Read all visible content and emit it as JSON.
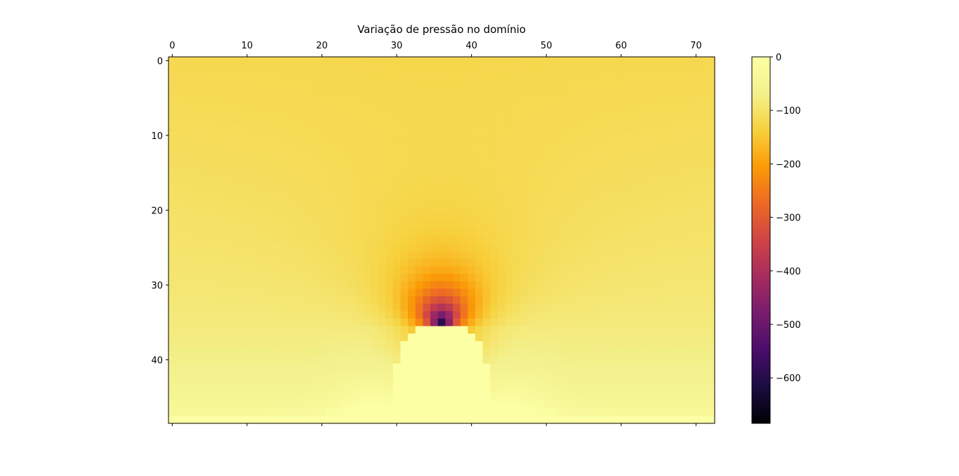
{
  "chart_data": {
    "type": "heatmap",
    "title": "Variação de pressão no domínio",
    "colormap": "inferno",
    "grid": false,
    "x_ticks": [
      0,
      10,
      20,
      30,
      40,
      50,
      60,
      70
    ],
    "y_ticks": [
      0,
      10,
      20,
      30,
      40
    ],
    "x_range": [
      -0.5,
      72.5
    ],
    "y_range": [
      -0.5,
      48.5
    ],
    "n_cols": 73,
    "n_rows": 49,
    "colorbar": {
      "ticks": [
        0,
        -100,
        -200,
        -300,
        -400,
        -500,
        -600
      ],
      "range": [
        -685,
        0
      ],
      "placement": "right"
    },
    "field": {
      "description_values": "approximate pressure values per grid cell",
      "obstacle_value": 0,
      "bottom_row_value": 0,
      "far_field_value": -120,
      "min_value": -685,
      "min_cells": [
        [
          34,
          36
        ],
        [
          35,
          36
        ],
        [
          38,
          36
        ],
        [
          39,
          36
        ]
      ],
      "obstacle_outline": [
        {
          "row": 36,
          "col_start": 33,
          "col_end": 39
        },
        {
          "row": 37,
          "col_start": 32,
          "col_end": 40
        },
        {
          "row": 38,
          "col_start": 31,
          "col_end": 41
        },
        {
          "row": 39,
          "col_start": 31,
          "col_end": 41
        },
        {
          "row": 40,
          "col_start": 31,
          "col_end": 41
        },
        {
          "row": 41,
          "col_start": 30,
          "col_end": 42
        },
        {
          "row": 42,
          "col_start": 30,
          "col_end": 42
        },
        {
          "row": 43,
          "col_start": 30,
          "col_end": 42
        },
        {
          "row": 44,
          "col_start": 30,
          "col_end": 42
        },
        {
          "row": 45,
          "col_start": 30,
          "col_end": 42
        },
        {
          "row": 46,
          "col_start": 30,
          "col_end": 42
        },
        {
          "row": 47,
          "col_start": 30,
          "col_end": 42
        }
      ]
    }
  }
}
